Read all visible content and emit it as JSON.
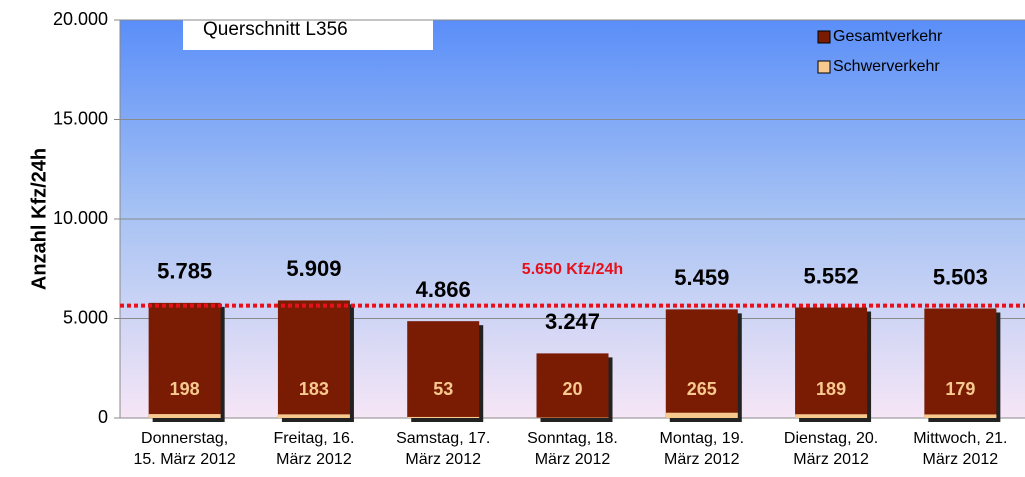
{
  "chart_data": {
    "type": "bar",
    "title": "Querschnitt L356",
    "y_label": "Anzahl Kfz/24h",
    "categories": [
      "Donnerstag,\n15. März 2012",
      "Freitag, 16.\nMärz 2012",
      "Samstag, 17.\nMärz 2012",
      "Sonntag, 18.\nMärz 2012",
      "Montag, 19.\nMärz 2012",
      "Dienstag, 20.\nMärz 2012",
      "Mittwoch, 21.\nMärz 2012"
    ],
    "series": [
      {
        "name": "Gesamtverkehr",
        "color": "#7a1c04",
        "values": [
          5785,
          5909,
          4866,
          3247,
          5459,
          5552,
          5503
        ],
        "value_labels": [
          "5.785",
          "5.909",
          "4.866",
          "3.247",
          "5.459",
          "5.552",
          "5.503"
        ]
      },
      {
        "name": "Schwerverkehr",
        "color": "#f7c98f",
        "values": [
          198,
          183,
          53,
          20,
          265,
          189,
          179
        ]
      }
    ],
    "reference_line": {
      "value": 5650,
      "label": "5.650 Kfz/24h",
      "color": "#e8101a"
    },
    "ylim": [
      0,
      20000
    ],
    "yticks": [
      0,
      {
        "value": 5000,
        "label": "5.000"
      },
      {
        "value": 10000,
        "label": "10.000"
      },
      {
        "value": 15000,
        "label": "15.000"
      },
      {
        "value": 20000,
        "label": "20.000"
      }
    ],
    "grid": true,
    "legend": "upper right"
  }
}
